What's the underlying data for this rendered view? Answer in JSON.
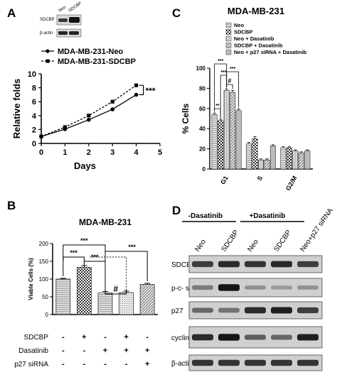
{
  "panels": {
    "A": {
      "letter": "A",
      "blot_lanes": [
        "Neo",
        "SDCBP"
      ],
      "blot_rows": [
        "SDCBP",
        "β-actin"
      ],
      "chart_data": {
        "type": "line",
        "x": [
          0,
          1,
          2,
          3,
          4
        ],
        "series": [
          {
            "name": "MDA-MB-231-Neo",
            "values": [
              1.0,
              2.05,
              3.4,
              4.9,
              7.0
            ],
            "marker": "circle"
          },
          {
            "name": "MDA-MB-231-SDCBP",
            "values": [
              1.0,
              2.35,
              4.0,
              6.0,
              8.35
            ],
            "marker": "square"
          }
        ],
        "xlabel": "Days",
        "ylabel": "Relative folds",
        "xlim": [
          0,
          5
        ],
        "ylim": [
          0,
          10
        ],
        "xticks": [
          "0",
          "1",
          "2",
          "3",
          "4",
          "5"
        ],
        "yticks": [
          "0",
          "2",
          "4",
          "6",
          "8",
          "10"
        ],
        "significance": "***"
      }
    },
    "B": {
      "letter": "B",
      "chart_data": {
        "type": "bar",
        "title": "MDA-MB-231",
        "ylabel": "Viable Cells (%)",
        "ylim": [
          0,
          200
        ],
        "yticks": [
          "0",
          "50",
          "100",
          "150",
          "200"
        ],
        "values": [
          100,
          133,
          61,
          62,
          85
        ],
        "errors": [
          2,
          5,
          4,
          4,
          3
        ],
        "patterns": [
          "hlines",
          "checker",
          "hlines",
          "dots",
          "diag"
        ],
        "significance": [
          "***",
          "***",
          "***",
          "#",
          "***"
        ],
        "conditions": [
          {
            "label": "SDCBP",
            "marks": [
              "-",
              "+",
              "-",
              "+",
              "-"
            ]
          },
          {
            "label": "Dasatinib",
            "marks": [
              "-",
              "-",
              "+",
              "+",
              "+"
            ]
          },
          {
            "label": "p27 siRNA",
            "marks": [
              "-",
              "-",
              "-",
              "-",
              "+"
            ]
          }
        ]
      }
    },
    "C": {
      "letter": "C",
      "chart_data": {
        "type": "bar",
        "title": "MDA-MB-231",
        "ylabel": "% Cells",
        "ylim": [
          0,
          100
        ],
        "yticks": [
          "0",
          "20",
          "40",
          "60",
          "80",
          "100"
        ],
        "categories": [
          "G1",
          "S",
          "G2/M"
        ],
        "series": [
          {
            "name": "Neo",
            "values": [
              54,
              25,
              21
            ],
            "errors": [
              1.5,
              1.5,
              1
            ]
          },
          {
            "name": "SDCBP",
            "values": [
              48,
              30,
              21
            ],
            "errors": [
              1.5,
              2,
              1
            ]
          },
          {
            "name": "Neo + Dasatinib",
            "values": [
              78,
              9,
              18
            ],
            "errors": [
              1.5,
              1,
              1
            ]
          },
          {
            "name": "SDCBP + Dasatinib",
            "values": [
              76,
              9,
              16
            ],
            "errors": [
              2,
              1,
              1
            ]
          },
          {
            "name": "Neo + p27 siRNA + Dasatinib",
            "values": [
              58,
              23,
              18
            ],
            "errors": [
              1.5,
              1,
              1
            ]
          }
        ],
        "significance": [
          "***",
          "**",
          "***",
          "#",
          "***"
        ]
      }
    },
    "D": {
      "letter": "D",
      "groups": [
        "-Dasatinib",
        "+Dasatinib"
      ],
      "lanes": [
        "Neo",
        "SDCBP",
        "Neo",
        "SDCBP",
        "Neo+p27 siRNA"
      ],
      "rows": [
        "SDCBP",
        "p-c- src",
        "p27",
        "cyclin E",
        "β-actin"
      ]
    }
  }
}
